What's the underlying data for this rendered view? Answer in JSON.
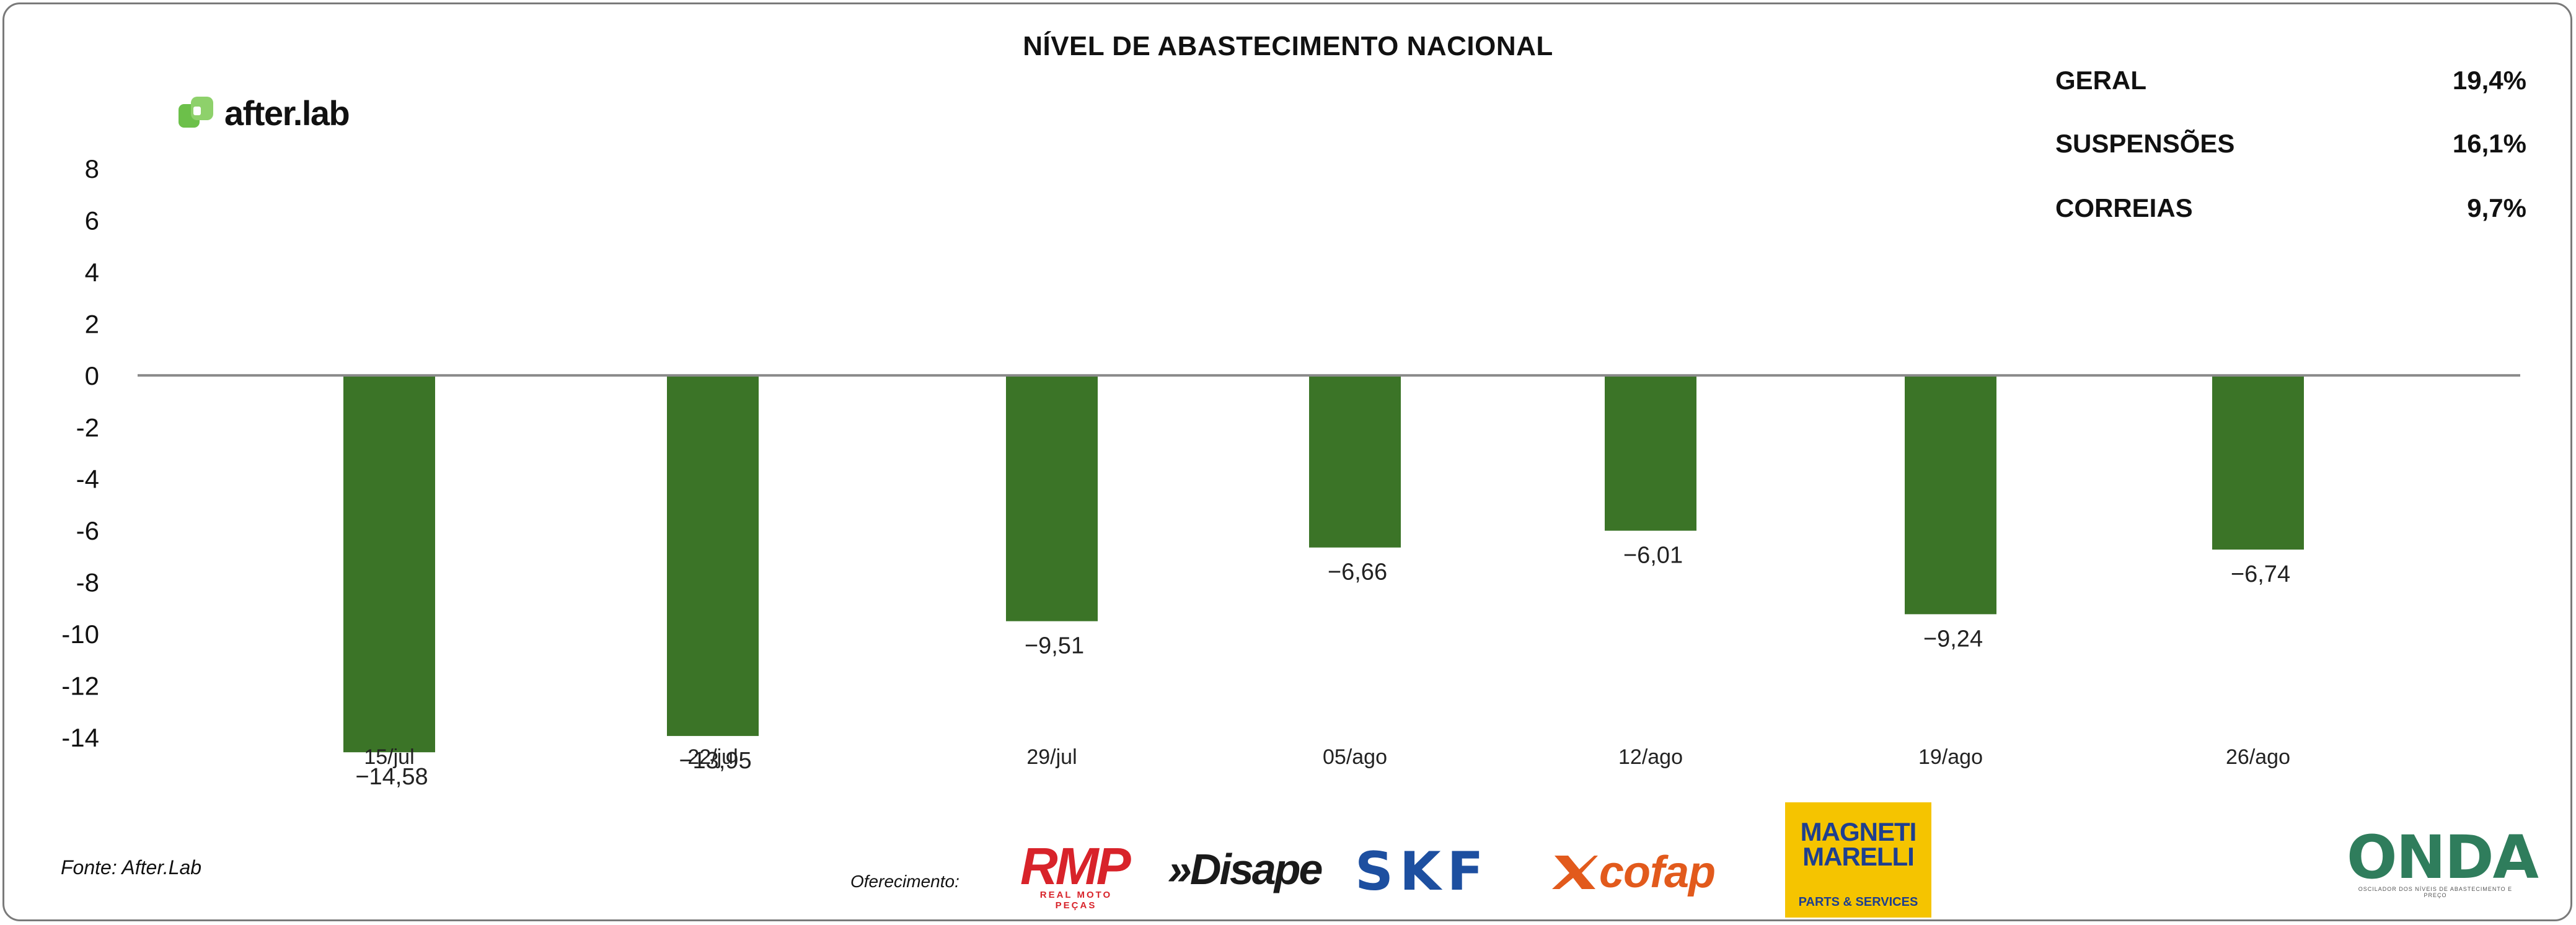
{
  "chart_data": {
    "type": "bar",
    "title": "NÍVEL DE ABASTECIMENTO NACIONAL",
    "categories": [
      "15/jul",
      "22/jul",
      "29/jul",
      "05/ago",
      "12/ago",
      "19/ago",
      "26/ago"
    ],
    "values": [
      -14.58,
      -13.95,
      -9.51,
      -6.66,
      -6.01,
      -9.24,
      -6.74
    ],
    "value_labels": [
      "−14,58",
      "−13,95",
      "−9,51",
      "−6,66",
      "−6,01",
      "−9,24",
      "−6,74"
    ],
    "yticks": [
      8,
      6,
      4,
      2,
      0,
      -2,
      -4,
      -6,
      -8,
      -10,
      -12,
      -14
    ],
    "ylim": [
      -14,
      8
    ],
    "xlabel": "",
    "ylabel": "",
    "bar_color": "#3b7427",
    "baseline_color": "#8a8a8a"
  },
  "stats": [
    {
      "label": "GERAL",
      "value": "19,4%"
    },
    {
      "label": "SUSPENSÕES",
      "value": "16,1%"
    },
    {
      "label": "CORREIAS",
      "value": "9,7%"
    }
  ],
  "brand": {
    "name": "after.lab",
    "color": "#6cc04a"
  },
  "footer": {
    "source": "Fonte: After.Lab",
    "sponsor_label": "Oferecimento:",
    "sponsors": {
      "rmp": "RMP",
      "rmp_sub": "REAL MOTO PEÇAS",
      "disape": "»Disape",
      "skf": "SKF",
      "cofap": "cofap",
      "magneti": "MAGNETI MARELLI",
      "magneti_sub": "PARTS & SERVICES",
      "onda": "ONDA",
      "onda_sub": "OSCILADOR DOS NÍVEIS DE ABASTECIMENTO E PREÇO"
    }
  }
}
